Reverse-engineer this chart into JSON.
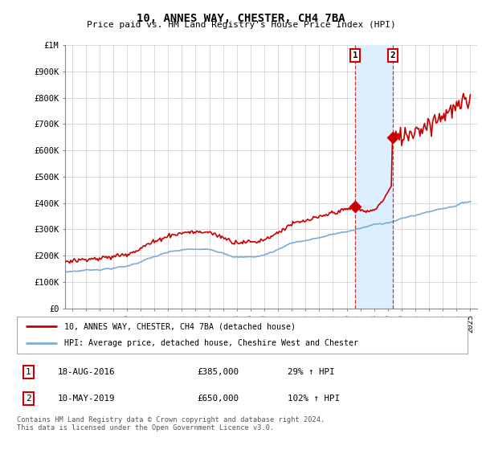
{
  "title": "10, ANNES WAY, CHESTER, CH4 7BA",
  "subtitle": "Price paid vs. HM Land Registry's House Price Index (HPI)",
  "ylim": [
    0,
    1000000
  ],
  "yticks": [
    0,
    100000,
    200000,
    300000,
    400000,
    500000,
    600000,
    700000,
    800000,
    900000,
    1000000
  ],
  "ytick_labels": [
    "£0",
    "£100K",
    "£200K",
    "£300K",
    "£400K",
    "£500K",
    "£600K",
    "£700K",
    "£800K",
    "£900K",
    "£1M"
  ],
  "xlim_start": 1995.5,
  "xlim_end": 2025.5,
  "sale1_x": 2016.63,
  "sale1_y": 385000,
  "sale2_x": 2019.36,
  "sale2_y": 650000,
  "legend_property": "10, ANNES WAY, CHESTER, CH4 7BA (detached house)",
  "legend_hpi": "HPI: Average price, detached house, Cheshire West and Chester",
  "table_row1": [
    "1",
    "18-AUG-2016",
    "£385,000",
    "29% ↑ HPI"
  ],
  "table_row2": [
    "2",
    "10-MAY-2019",
    "£650,000",
    "102% ↑ HPI"
  ],
  "footnote": "Contains HM Land Registry data © Crown copyright and database right 2024.\nThis data is licensed under the Open Government Licence v3.0.",
  "property_color": "#cc0000",
  "hpi_color": "#7aabdb",
  "dashed_line_color": "#cc0000",
  "background_color": "#ffffff",
  "grid_color": "#cccccc",
  "span_color": "#ddeeff"
}
